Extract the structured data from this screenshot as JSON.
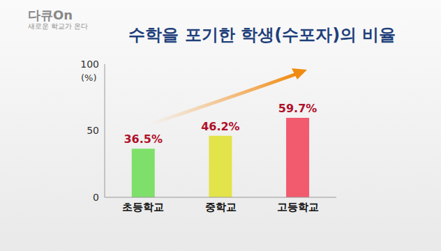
{
  "chart_data": {
    "type": "bar",
    "title": "수학을 포기한 학생(수포자)의 비율",
    "annotations": [
      "다큐On",
      "새로운 학교가 온다"
    ],
    "y_label": "(%)",
    "categories": [
      "초등학교",
      "중학교",
      "고등학교"
    ],
    "values": [
      36.5,
      46.2,
      59.7
    ],
    "value_labels": [
      "36.5%",
      "46.2%",
      "59.7%"
    ],
    "colors": [
      "#7ee06a",
      "#e3e34a",
      "#f25a6e"
    ],
    "ylim": [
      0,
      100
    ],
    "yticks": [
      0,
      50,
      100
    ],
    "grid": false,
    "data_labels": true
  }
}
